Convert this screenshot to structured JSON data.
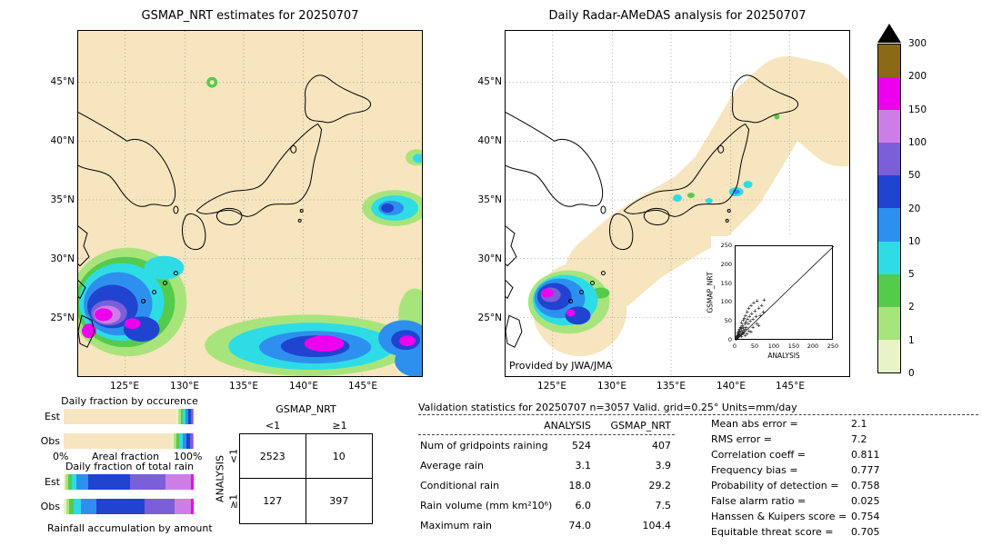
{
  "palette": {
    "over": "#6B5210",
    "r300": "#8A6A14",
    "r200": "#EE00EE",
    "r150": "#CC7EE6",
    "r100": "#7A5FD8",
    "r50": "#2144D0",
    "r20": "#2E90EE",
    "r10": "#2EDCE6",
    "r5": "#55CB4C",
    "r2": "#A8E47C",
    "r1": "#E9F3C8",
    "r0": "#F6E5BE"
  },
  "left_map": {
    "title": "GSMAP_NRT estimates for 20250707",
    "lat_ticks": [
      "45°N",
      "40°N",
      "35°N",
      "30°N",
      "25°N"
    ],
    "lon_ticks": [
      "125°E",
      "130°E",
      "135°E",
      "140°E",
      "145°E"
    ]
  },
  "right_map": {
    "title": "Daily Radar-AMeDAS analysis for 20250707",
    "credit": "Provided by JWA/JMA",
    "lat_ticks": [
      "45°N",
      "40°N",
      "35°N",
      "30°N",
      "25°N"
    ],
    "lon_ticks": [
      "125°E",
      "130°E",
      "135°E",
      "140°E",
      "145°E"
    ],
    "inset": {
      "xlabel": "ANALYSIS",
      "ylabel": "GSMAP_NRT",
      "x_ticks": [
        "0",
        "50",
        "100",
        "150",
        "200",
        "250"
      ],
      "y_ticks": [
        "250",
        "200",
        "150",
        "100",
        "50",
        "0"
      ],
      "points": [
        [
          2,
          1
        ],
        [
          3,
          4
        ],
        [
          4,
          2
        ],
        [
          5,
          7
        ],
        [
          5,
          14
        ],
        [
          6,
          3
        ],
        [
          7,
          10
        ],
        [
          8,
          5
        ],
        [
          8,
          19
        ],
        [
          9,
          13
        ],
        [
          10,
          7
        ],
        [
          10,
          24
        ],
        [
          11,
          16
        ],
        [
          12,
          9
        ],
        [
          13,
          30
        ],
        [
          14,
          20
        ],
        [
          15,
          11
        ],
        [
          15,
          42
        ],
        [
          16,
          26
        ],
        [
          17,
          15
        ],
        [
          18,
          35
        ],
        [
          19,
          22
        ],
        [
          20,
          12
        ],
        [
          20,
          48
        ],
        [
          21,
          30
        ],
        [
          22,
          18
        ],
        [
          23,
          55
        ],
        [
          24,
          38
        ],
        [
          25,
          25
        ],
        [
          26,
          62
        ],
        [
          27,
          44
        ],
        [
          28,
          30
        ],
        [
          30,
          70
        ],
        [
          31,
          52
        ],
        [
          33,
          38
        ],
        [
          34,
          80
        ],
        [
          36,
          60
        ],
        [
          38,
          46
        ],
        [
          40,
          88
        ],
        [
          42,
          66
        ],
        [
          45,
          52
        ],
        [
          47,
          95
        ],
        [
          50,
          74
        ],
        [
          53,
          58
        ],
        [
          56,
          100
        ],
        [
          60,
          80
        ],
        [
          64,
          62
        ],
        [
          68,
          88
        ],
        [
          72,
          70
        ],
        [
          74,
          104
        ],
        [
          35,
          20
        ],
        [
          45,
          30
        ],
        [
          55,
          40
        ],
        [
          25,
          8
        ],
        [
          40,
          18
        ],
        [
          60,
          35
        ],
        [
          15,
          5
        ],
        [
          30,
          12
        ]
      ]
    }
  },
  "colorbar": {
    "labels": [
      "300",
      "200",
      "150",
      "100",
      "50",
      "20",
      "10",
      "5",
      "2",
      "1",
      "0"
    ],
    "cells": [
      {
        "color": "#8A6A14"
      },
      {
        "color": "#EE00EE"
      },
      {
        "color": "#CC7EE6"
      },
      {
        "color": "#7A5FD8"
      },
      {
        "color": "#2144D0"
      },
      {
        "color": "#2E90EE"
      },
      {
        "color": "#2EDCE6"
      },
      {
        "color": "#55CB4C"
      },
      {
        "color": "#A8E47C"
      },
      {
        "color": "#E9F3C8"
      }
    ]
  },
  "fractions": {
    "occurrence_title": "Daily fraction by occurence",
    "occurrence_rows": [
      {
        "label": "Est",
        "segments": [
          {
            "w": 86.7,
            "color": "#F6E5BE"
          },
          {
            "w": 1.6,
            "color": "#E9F3C8"
          },
          {
            "w": 1.6,
            "color": "#A8E47C"
          },
          {
            "w": 1.6,
            "color": "#55CB4C"
          },
          {
            "w": 2.0,
            "color": "#2EDCE6"
          },
          {
            "w": 2.2,
            "color": "#2E90EE"
          },
          {
            "w": 2.2,
            "color": "#2144D0"
          },
          {
            "w": 1.3,
            "color": "#7A5FD8"
          },
          {
            "w": 0.5,
            "color": "#CC7EE6"
          },
          {
            "w": 0.3,
            "color": "#EE00EE"
          }
        ]
      },
      {
        "label": "Obs",
        "segments": [
          {
            "w": 82.9,
            "color": "#F6E5BE"
          },
          {
            "w": 2.0,
            "color": "#E9F3C8"
          },
          {
            "w": 2.0,
            "color": "#A8E47C"
          },
          {
            "w": 2.0,
            "color": "#55CB4C"
          },
          {
            "w": 2.5,
            "color": "#2EDCE6"
          },
          {
            "w": 3.0,
            "color": "#2E90EE"
          },
          {
            "w": 3.0,
            "color": "#2144D0"
          },
          {
            "w": 1.6,
            "color": "#7A5FD8"
          },
          {
            "w": 0.7,
            "color": "#CC7EE6"
          },
          {
            "w": 0.3,
            "color": "#EE00EE"
          }
        ]
      }
    ],
    "axis": {
      "left": "0%",
      "center": "Areal fraction",
      "right": "100%"
    },
    "totalrain_title": "Daily fraction of total rain",
    "totalrain_rows": [
      {
        "label": "Est",
        "segments": [
          {
            "w": 1.5,
            "color": "#E9F3C8"
          },
          {
            "w": 2.0,
            "color": "#A8E47C"
          },
          {
            "w": 2.5,
            "color": "#55CB4C"
          },
          {
            "w": 4.0,
            "color": "#2EDCE6"
          },
          {
            "w": 9.0,
            "color": "#2E90EE"
          },
          {
            "w": 32.0,
            "color": "#2144D0"
          },
          {
            "w": 27.0,
            "color": "#7A5FD8"
          },
          {
            "w": 20.0,
            "color": "#CC7EE6"
          },
          {
            "w": 2.0,
            "color": "#EE00EE"
          }
        ]
      },
      {
        "label": "Obs",
        "segments": [
          {
            "w": 2.0,
            "color": "#E9F3C8"
          },
          {
            "w": 2.5,
            "color": "#A8E47C"
          },
          {
            "w": 3.5,
            "color": "#55CB4C"
          },
          {
            "w": 5.5,
            "color": "#2EDCE6"
          },
          {
            "w": 12.0,
            "color": "#2E90EE"
          },
          {
            "w": 37.0,
            "color": "#2144D0"
          },
          {
            "w": 23.0,
            "color": "#7A5FD8"
          },
          {
            "w": 12.5,
            "color": "#CC7EE6"
          },
          {
            "w": 2.0,
            "color": "#EE00EE"
          }
        ]
      }
    ],
    "caption": "Rainfall accumulation by amount"
  },
  "contingency": {
    "title": "GSMAP_NRT",
    "col_labels": [
      "<1",
      "≥1"
    ],
    "row_axis": "ANALYSIS",
    "row_labels": [
      "<1",
      "≥1"
    ],
    "cells": [
      [
        "2523",
        "10"
      ],
      [
        "127",
        "397"
      ]
    ]
  },
  "validation": {
    "title": "Validation statistics for 20250707  n=3057 Valid. grid=0.25°  Units=mm/day",
    "col_headers": [
      "ANALYSIS",
      "GSMAP_NRT"
    ],
    "rows": [
      {
        "label": "Num of gridpoints raining",
        "analysis": "524",
        "gsmap": "407"
      },
      {
        "label": "Average rain",
        "analysis": "3.1",
        "gsmap": "3.9"
      },
      {
        "label": "Conditional rain",
        "analysis": "18.0",
        "gsmap": "29.2"
      },
      {
        "label": "Rain volume (mm km²10⁶)",
        "analysis": "6.0",
        "gsmap": "7.5"
      },
      {
        "label": "Maximum rain",
        "analysis": "74.0",
        "gsmap": "104.4"
      }
    ],
    "scores": [
      {
        "label": "Mean abs error =",
        "value": "2.1"
      },
      {
        "label": "RMS error =",
        "value": "7.2"
      },
      {
        "label": "Correlation coeff =",
        "value": "0.811"
      },
      {
        "label": "Frequency bias =",
        "value": "0.777"
      },
      {
        "label": "Probability of detection =",
        "value": "0.758"
      },
      {
        "label": "False alarm ratio =",
        "value": "0.025"
      },
      {
        "label": "Hanssen & Kuipers score =",
        "value": "0.754"
      },
      {
        "label": "Equitable threat score =",
        "value": "0.705"
      }
    ]
  },
  "chart_data": [
    {
      "type": "heatmap",
      "title": "GSMAP_NRT estimates for 20250707",
      "units": "mm/day",
      "lat_ticks": [
        "25°N",
        "30°N",
        "35°N",
        "40°N",
        "45°N"
      ],
      "lon_ticks": [
        "125°E",
        "130°E",
        "135°E",
        "140°E",
        "145°E"
      ],
      "levels": [
        0,
        1,
        2,
        5,
        10,
        20,
        50,
        100,
        150,
        200,
        300
      ]
    },
    {
      "type": "heatmap",
      "title": "Daily Radar-AMeDAS analysis for 20250707",
      "units": "mm/day",
      "lat_ticks": [
        "25°N",
        "30°N",
        "35°N",
        "40°N",
        "45°N"
      ],
      "lon_ticks": [
        "125°E",
        "130°E",
        "135°E",
        "140°E",
        "145°E"
      ],
      "levels": [
        0,
        1,
        2,
        5,
        10,
        20,
        50,
        100,
        150,
        200,
        300
      ],
      "credit": "Provided by JWA/JMA"
    },
    {
      "type": "scatter",
      "title": "GSMAP_NRT vs ANALYSIS",
      "xlabel": "ANALYSIS",
      "ylabel": "GSMAP_NRT",
      "xlim": [
        0,
        250
      ],
      "ylim": [
        0,
        250
      ],
      "diagonal": true,
      "x_max_point": [
        74,
        104.4
      ]
    },
    {
      "type": "table",
      "title": "Contingency table (threshold 1 mm/day)",
      "columns": [
        "<1",
        "≥1"
      ],
      "rows": [
        "<1",
        "≥1"
      ],
      "values": [
        [
          2523,
          10
        ],
        [
          127,
          397
        ]
      ]
    },
    {
      "type": "table",
      "title": "Validation statistics for 20250707 n=3057 Valid. grid=0.25° Units=mm/day",
      "columns": [
        "ANALYSIS",
        "GSMAP_NRT"
      ],
      "rows": [
        [
          "Num of gridpoints raining",
          524,
          407
        ],
        [
          "Average rain",
          3.1,
          3.9
        ],
        [
          "Conditional rain",
          18.0,
          29.2
        ],
        [
          "Rain volume (mm km²10⁶)",
          6.0,
          7.5
        ],
        [
          "Maximum rain",
          74.0,
          104.4
        ]
      ]
    },
    {
      "type": "table",
      "title": "Skill scores",
      "rows": [
        [
          "Mean abs error",
          2.1
        ],
        [
          "RMS error",
          7.2
        ],
        [
          "Correlation coeff",
          0.811
        ],
        [
          "Frequency bias",
          0.777
        ],
        [
          "Probability of detection",
          0.758
        ],
        [
          "False alarm ratio",
          0.025
        ],
        [
          "Hanssen & Kuipers score",
          0.754
        ],
        [
          "Equitable threat score",
          0.705
        ]
      ]
    }
  ]
}
